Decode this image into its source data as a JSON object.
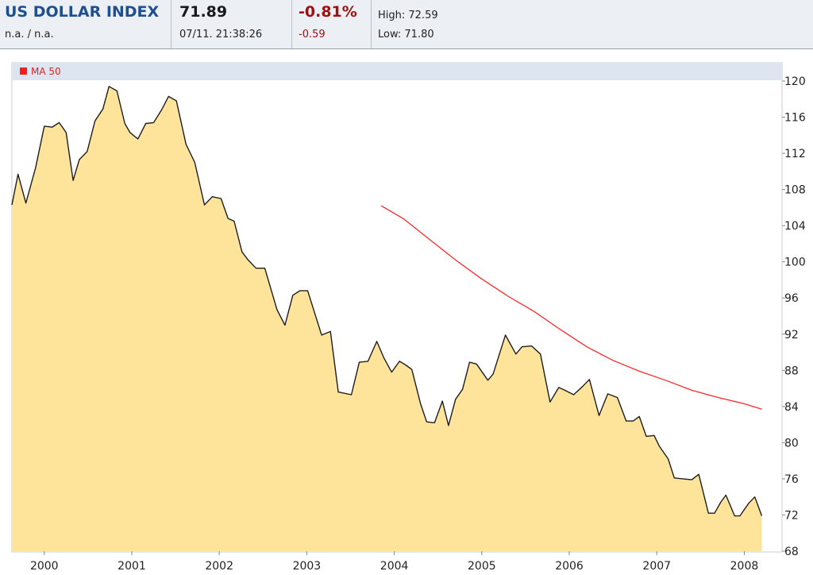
{
  "header": {
    "title": "US DOLLAR INDEX",
    "sub_left": "n.a.  /  n.a.",
    "last": "71.89",
    "datetime": "07/11. 21:38:26",
    "change_pct": "-0.81%",
    "change_abs": "-0.59",
    "high": "High: 72.59",
    "low": "Low: 71.80"
  },
  "colors": {
    "area_fill": "#fde49a",
    "area_line": "#1e1e1e",
    "ma_line": "#ff2a2a",
    "legend_bar": "#dde6f0"
  },
  "chart_data": {
    "type": "area",
    "title": "",
    "xlabel": "",
    "ylabel": "",
    "ylim": [
      68,
      120
    ],
    "yticks": [
      120,
      116,
      112,
      108,
      104,
      100,
      96,
      92,
      88,
      84,
      80,
      76,
      72,
      68
    ],
    "xlim": [
      1999.63,
      2008.25
    ],
    "xticks": [
      2000,
      2001,
      2002,
      2003,
      2004,
      2005,
      2006,
      2007,
      2008
    ],
    "legend": "top-left",
    "series": [
      {
        "name": "",
        "type": "area",
        "x": [
          1999.63,
          1999.7,
          1999.79,
          1999.9,
          2000.0,
          2000.09,
          2000.17,
          2000.25,
          2000.33,
          2000.4,
          2000.49,
          2000.58,
          2000.67,
          2000.74,
          2000.83,
          2000.92,
          2000.98,
          2001.07,
          2001.16,
          2001.25,
          2001.34,
          2001.42,
          2001.51,
          2001.62,
          2001.72,
          2001.83,
          2001.92,
          2002.02,
          2002.1,
          2002.17,
          2002.26,
          2002.33,
          2002.42,
          2002.52,
          2002.66,
          2002.75,
          2002.84,
          2002.92,
          2003.01,
          2003.17,
          2003.27,
          2003.36,
          2003.51,
          2003.6,
          2003.7,
          2003.8,
          2003.88,
          2003.97,
          2004.06,
          2004.13,
          2004.2,
          2004.3,
          2004.37,
          2004.46,
          2004.55,
          2004.62,
          2004.7,
          2004.78,
          2004.86,
          2004.94,
          2005.07,
          2005.13,
          2005.27,
          2005.39,
          2005.46,
          2005.57,
          2005.67,
          2005.78,
          2005.88,
          2005.95,
          2006.05,
          2006.15,
          2006.23,
          2006.34,
          2006.44,
          2006.55,
          2006.65,
          2006.73,
          2006.8,
          2006.88,
          2006.97,
          2007.03,
          2007.13,
          2007.2,
          2007.3,
          2007.4,
          2007.48,
          2007.59,
          2007.66,
          2007.73,
          2007.79,
          2007.89,
          2007.95,
          2008.05,
          2008.12,
          2008.2
        ],
        "values": [
          106.3,
          109.7,
          106.5,
          110.4,
          115.0,
          114.9,
          115.4,
          114.3,
          109.0,
          111.3,
          112.2,
          115.6,
          116.9,
          119.4,
          118.9,
          115.3,
          114.3,
          113.6,
          115.3,
          115.4,
          116.8,
          118.3,
          117.8,
          113.0,
          111.0,
          106.3,
          107.2,
          107.0,
          104.8,
          104.5,
          101.1,
          100.2,
          99.3,
          99.3,
          94.7,
          93.0,
          96.3,
          96.8,
          96.8,
          91.9,
          92.3,
          85.6,
          85.3,
          88.9,
          89.0,
          91.2,
          89.4,
          87.8,
          89.0,
          88.6,
          88.1,
          84.3,
          82.3,
          82.2,
          84.6,
          81.9,
          84.8,
          85.9,
          88.9,
          88.7,
          86.9,
          87.6,
          91.9,
          89.8,
          90.6,
          90.7,
          89.8,
          84.5,
          86.1,
          85.8,
          85.3,
          86.2,
          87.0,
          83.0,
          85.4,
          85.0,
          82.4,
          82.4,
          82.9,
          80.7,
          80.8,
          79.6,
          78.2,
          76.1,
          76.0,
          75.9,
          76.5,
          72.2,
          72.2,
          73.4,
          74.2,
          71.9,
          71.9,
          73.3,
          74.0,
          71.9
        ]
      },
      {
        "name": "MA 50",
        "type": "line",
        "x": [
          2003.85,
          2004.1,
          2004.4,
          2004.7,
          2005.0,
          2005.3,
          2005.6,
          2005.9,
          2006.2,
          2006.5,
          2006.8,
          2007.1,
          2007.4,
          2007.7,
          2008.0,
          2008.2
        ],
        "values": [
          106.2,
          104.8,
          102.5,
          100.2,
          98.1,
          96.2,
          94.5,
          92.5,
          90.6,
          89.1,
          87.9,
          86.9,
          85.8,
          85.0,
          84.3,
          83.7
        ]
      }
    ]
  }
}
